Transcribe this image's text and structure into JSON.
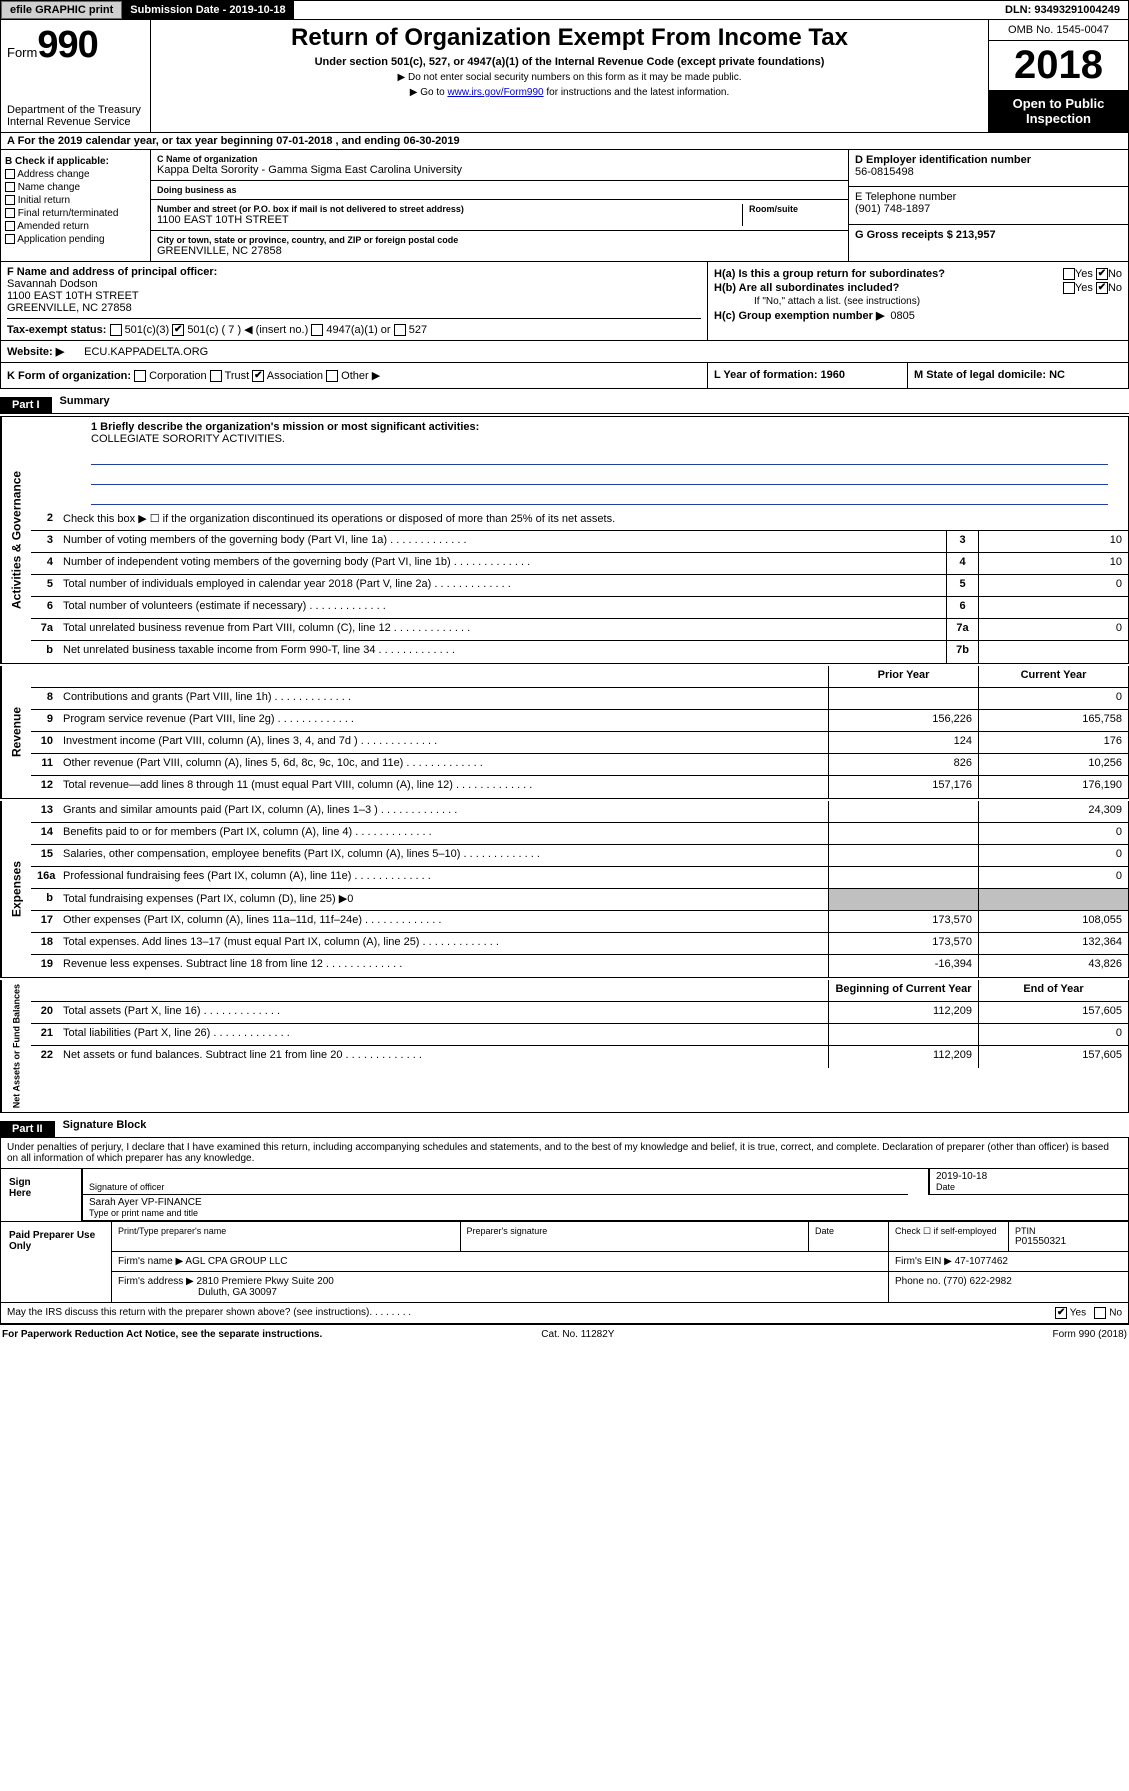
{
  "colors": {
    "black": "#000000",
    "grey": "#c0c0c0",
    "btn": "#d0d0d0",
    "line": "#2040a0"
  },
  "topbar": {
    "efile": "efile GRAPHIC print",
    "subdate_label": "Submission Date - 2019-10-18",
    "dln": "DLN: 93493291004249"
  },
  "header": {
    "form_label": "Form",
    "form_number": "990",
    "dept": "Department of the Treasury",
    "irs": "Internal Revenue Service",
    "title": "Return of Organization Exempt From Income Tax",
    "subtitle": "Under section 501(c), 527, or 4947(a)(1) of the Internal Revenue Code (except private foundations)",
    "note1": "▶ Do not enter social security numbers on this form as it may be made public.",
    "note2_pre": "▶ Go to ",
    "note2_link": "www.irs.gov/Form990",
    "note2_post": " for instructions and the latest information.",
    "omb": "OMB No. 1545-0047",
    "year": "2018",
    "open": "Open to Public Inspection"
  },
  "period": "A For the 2019 calendar year, or tax year beginning 07-01-2018  , and ending 06-30-2019",
  "sectionB": {
    "label": "B Check if applicable:",
    "items": [
      "Address change",
      "Name change",
      "Initial return",
      "Final return/terminated",
      "Amended return",
      "Application pending"
    ]
  },
  "sectionC": {
    "name_lbl": "C Name of organization",
    "name": "Kappa Delta Sorority - Gamma Sigma East Carolina University",
    "dba_lbl": "Doing business as",
    "dba": "",
    "addr_lbl": "Number and street (or P.O. box if mail is not delivered to street address)",
    "room_lbl": "Room/suite",
    "addr": "1100 EAST 10TH STREET",
    "city_lbl": "City or town, state or province, country, and ZIP or foreign postal code",
    "city": "GREENVILLE, NC  27858"
  },
  "sectionD": {
    "lbl": "D Employer identification number",
    "val": "56-0815498"
  },
  "sectionE": {
    "lbl": "E Telephone number",
    "val": "(901) 748-1897"
  },
  "sectionG": {
    "lbl": "G Gross receipts $ 213,957"
  },
  "sectionF": {
    "lbl": "F  Name and address of principal officer:",
    "name": "Savannah Dodson",
    "addr1": "1100 EAST 10TH STREET",
    "addr2": "GREENVILLE, NC  27858"
  },
  "sectionH": {
    "a": "H(a)  Is this a group return for subordinates?",
    "b": "H(b)  Are all subordinates included?",
    "b_note": "If \"No,\" attach a list. (see instructions)",
    "c_lbl": "H(c)  Group exemption number ▶",
    "c_val": "0805",
    "a_yes": false,
    "a_no": true,
    "b_yes": false,
    "b_no": true
  },
  "sectionI": {
    "lbl": "Tax-exempt status:",
    "c3": "501(c)(3)",
    "c7_checked": true,
    "c7": "501(c) ( 7 ) ◀ (insert no.)",
    "a1": "4947(a)(1) or",
    "s527": "527"
  },
  "sectionJ": {
    "lbl": "Website: ▶",
    "val": "ECU.KAPPADELTA.ORG"
  },
  "sectionK": {
    "lbl": "K Form of organization:",
    "opts": [
      "Corporation",
      "Trust",
      "Association",
      "Other ▶"
    ],
    "checked": "Association"
  },
  "sectionL": {
    "lbl": "L Year of formation: 1960"
  },
  "sectionM": {
    "lbl": "M State of legal domicile: NC"
  },
  "part1": {
    "hdr": "Part I",
    "title": "Summary",
    "mission_lbl": "1  Briefly describe the organization's mission or most significant activities:",
    "mission": "COLLEGIATE SORORITY ACTIVITIES.",
    "line2": "Check this box ▶ ☐  if the organization discontinued its operations or disposed of more than 25% of its net assets.",
    "sections": {
      "gov": "Activities & Governance",
      "rev": "Revenue",
      "exp": "Expenses",
      "net": "Net Assets or Fund Balances"
    },
    "col_prior": "Prior Year",
    "col_current": "Current Year",
    "col_begin": "Beginning of Current Year",
    "col_end": "End of Year",
    "rows_gov": [
      {
        "n": "3",
        "d": "Number of voting members of the governing body (Part VI, line 1a)",
        "idx": "3",
        "v": "10"
      },
      {
        "n": "4",
        "d": "Number of independent voting members of the governing body (Part VI, line 1b)",
        "idx": "4",
        "v": "10"
      },
      {
        "n": "5",
        "d": "Total number of individuals employed in calendar year 2018 (Part V, line 2a)",
        "idx": "5",
        "v": "0"
      },
      {
        "n": "6",
        "d": "Total number of volunteers (estimate if necessary)",
        "idx": "6",
        "v": ""
      },
      {
        "n": "7a",
        "d": "Total unrelated business revenue from Part VIII, column (C), line 12",
        "idx": "7a",
        "v": "0"
      },
      {
        "n": "b",
        "d": "Net unrelated business taxable income from Form 990-T, line 34",
        "idx": "7b",
        "v": ""
      }
    ],
    "rows_rev": [
      {
        "n": "8",
        "d": "Contributions and grants (Part VIII, line 1h)",
        "p": "",
        "c": "0"
      },
      {
        "n": "9",
        "d": "Program service revenue (Part VIII, line 2g)",
        "p": "156,226",
        "c": "165,758"
      },
      {
        "n": "10",
        "d": "Investment income (Part VIII, column (A), lines 3, 4, and 7d )",
        "p": "124",
        "c": "176"
      },
      {
        "n": "11",
        "d": "Other revenue (Part VIII, column (A), lines 5, 6d, 8c, 9c, 10c, and 11e)",
        "p": "826",
        "c": "10,256"
      },
      {
        "n": "12",
        "d": "Total revenue—add lines 8 through 11 (must equal Part VIII, column (A), line 12)",
        "p": "157,176",
        "c": "176,190"
      }
    ],
    "rows_exp": [
      {
        "n": "13",
        "d": "Grants and similar amounts paid (Part IX, column (A), lines 1–3 )",
        "p": "",
        "c": "24,309"
      },
      {
        "n": "14",
        "d": "Benefits paid to or for members (Part IX, column (A), line 4)",
        "p": "",
        "c": "0"
      },
      {
        "n": "15",
        "d": "Salaries, other compensation, employee benefits (Part IX, column (A), lines 5–10)",
        "p": "",
        "c": "0"
      },
      {
        "n": "16a",
        "d": "Professional fundraising fees (Part IX, column (A), line 11e)",
        "p": "",
        "c": "0"
      },
      {
        "n": "b",
        "d": "Total fundraising expenses (Part IX, column (D), line 25) ▶0",
        "grey": true
      },
      {
        "n": "17",
        "d": "Other expenses (Part IX, column (A), lines 11a–11d, 11f–24e)",
        "p": "173,570",
        "c": "108,055"
      },
      {
        "n": "18",
        "d": "Total expenses. Add lines 13–17 (must equal Part IX, column (A), line 25)",
        "p": "173,570",
        "c": "132,364"
      },
      {
        "n": "19",
        "d": "Revenue less expenses. Subtract line 18 from line 12",
        "p": "-16,394",
        "c": "43,826"
      }
    ],
    "rows_net": [
      {
        "n": "20",
        "d": "Total assets (Part X, line 16)",
        "p": "112,209",
        "c": "157,605"
      },
      {
        "n": "21",
        "d": "Total liabilities (Part X, line 26)",
        "p": "",
        "c": "0"
      },
      {
        "n": "22",
        "d": "Net assets or fund balances. Subtract line 21 from line 20",
        "p": "112,209",
        "c": "157,605"
      }
    ]
  },
  "part2": {
    "hdr": "Part II",
    "title": "Signature Block",
    "perjury": "Under penalties of perjury, I declare that I have examined this return, including accompanying schedules and statements, and to the best of my knowledge and belief, it is true, correct, and complete. Declaration of preparer (other than officer) is based on all information of which preparer has any knowledge.",
    "sign_here": "Sign Here",
    "sig_officer": "Signature of officer",
    "date_lbl": "Date",
    "date": "2019-10-18",
    "name_title": "Sarah Ayer  VP-FINANCE",
    "name_lbl": "Type or print name and title",
    "paid": "Paid Preparer Use Only",
    "prep_name_lbl": "Print/Type preparer's name",
    "prep_sig_lbl": "Preparer's signature",
    "check_lbl": "Check ☐ if self-employed",
    "ptin_lbl": "PTIN",
    "ptin": "P01550321",
    "firm_name_lbl": "Firm's name   ▶",
    "firm_name": "AGL CPA GROUP LLC",
    "firm_ein_lbl": "Firm's EIN ▶",
    "firm_ein": "47-1077462",
    "firm_addr_lbl": "Firm's address ▶",
    "firm_addr1": "2810 Premiere Pkwy Suite 200",
    "firm_addr2": "Duluth, GA  30097",
    "phone_lbl": "Phone no.",
    "phone": "(770) 622-2982",
    "discuss": "May the IRS discuss this return with the preparer shown above? (see instructions)",
    "discuss_yes": true
  },
  "footer": {
    "pra": "For Paperwork Reduction Act Notice, see the separate instructions.",
    "cat": "Cat. No. 11282Y",
    "form": "Form 990 (2018)"
  }
}
